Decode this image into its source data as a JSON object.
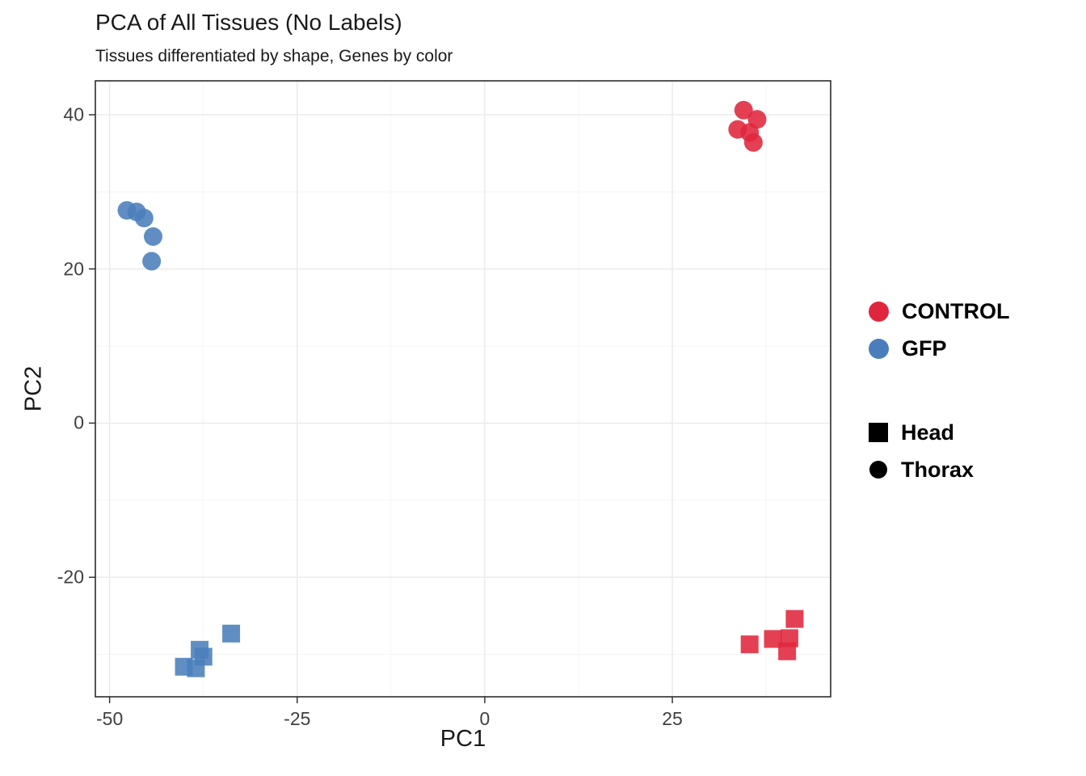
{
  "chart_data": {
    "type": "scatter",
    "title": "PCA of All Tissues (No Labels)",
    "subtitle": "Tissues differentiated by shape, Genes by color",
    "xlabel": "PC1",
    "ylabel": "PC2",
    "xlim": [
      -51.9,
      46.1
    ],
    "ylim": [
      -35.5,
      44.4
    ],
    "xticks": [
      -50,
      -25,
      0,
      25
    ],
    "yticks": [
      -20,
      0,
      20,
      40
    ],
    "grid": true,
    "legend_position": "right",
    "colors": {
      "control": "#E0263C",
      "gfp": "#4A7EBB",
      "grid_major": "#EBEBEB",
      "grid_minor": "#F5F5F5",
      "panel_border": "#1f1f1f",
      "panel_bg": "#FFFFFF",
      "shape_key": "#000000"
    },
    "series": [
      {
        "name": "CONTROL Thorax",
        "gene": "CONTROL",
        "tissue": "Thorax",
        "color": "#E0263C",
        "shape": "circle",
        "points": [
          [
            34.5,
            40.6
          ],
          [
            36.3,
            39.4
          ],
          [
            33.7,
            38.1
          ],
          [
            35.3,
            37.7
          ],
          [
            35.8,
            36.4
          ]
        ]
      },
      {
        "name": "GFP Thorax",
        "gene": "GFP",
        "tissue": "Thorax",
        "color": "#4A7EBB",
        "shape": "circle",
        "points": [
          [
            -47.7,
            27.6
          ],
          [
            -46.4,
            27.4
          ],
          [
            -45.4,
            26.6
          ],
          [
            -44.2,
            24.2
          ],
          [
            -44.4,
            21.0
          ]
        ]
      },
      {
        "name": "GFP Head",
        "gene": "GFP",
        "tissue": "Head",
        "color": "#4A7EBB",
        "shape": "square",
        "points": [
          [
            -33.8,
            -27.3
          ],
          [
            -38.0,
            -29.4
          ],
          [
            -37.5,
            -30.3
          ],
          [
            -40.1,
            -31.6
          ],
          [
            -38.5,
            -31.8
          ]
        ]
      },
      {
        "name": "CONTROL Head",
        "gene": "CONTROL",
        "tissue": "Head",
        "color": "#E0263C",
        "shape": "square",
        "points": [
          [
            41.3,
            -25.4
          ],
          [
            35.3,
            -28.7
          ],
          [
            38.4,
            -28.0
          ],
          [
            40.6,
            -27.9
          ],
          [
            40.3,
            -29.6
          ]
        ]
      }
    ],
    "legend": {
      "color_items": [
        {
          "label": "CONTROL",
          "color": "#E0263C"
        },
        {
          "label": "GFP",
          "color": "#4A7EBB"
        }
      ],
      "shape_items": [
        {
          "label": "Head",
          "shape": "square"
        },
        {
          "label": "Thorax",
          "shape": "circle"
        }
      ]
    }
  }
}
